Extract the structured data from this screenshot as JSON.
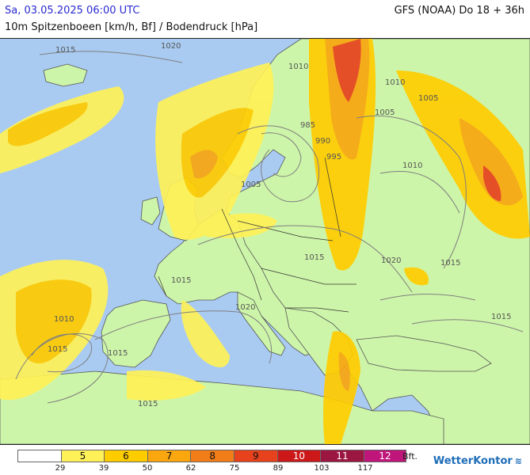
{
  "header": {
    "datetime": "Sa, 03.05.2025 06:00 UTC",
    "title": "10m Spitzenboeen [km/h, Bf] / Bodendruck [hPa]",
    "model": "GFS (NOAA) Do 18 + 36h"
  },
  "map": {
    "pressure_labels": [
      "1015",
      "1020",
      "1010",
      "985",
      "990",
      "995",
      "1005",
      "1010",
      "1005",
      "1005",
      "1015",
      "1020",
      "1015",
      "1015",
      "1010",
      "1020",
      "1015",
      "1015",
      "1015",
      "1010",
      "1015"
    ],
    "colors": {
      "sea": "#a9cbf2",
      "land": "#cdf5a9",
      "border": "#333333"
    }
  },
  "legend": {
    "bft_unit": "Bft.",
    "scale": [
      {
        "bft": "",
        "kmh": "29",
        "color": "#ffffff"
      },
      {
        "bft": "5",
        "kmh": "39",
        "color": "#fff157"
      },
      {
        "bft": "6",
        "kmh": "50",
        "color": "#ffcc00"
      },
      {
        "bft": "7",
        "kmh": "62",
        "color": "#f9a60f"
      },
      {
        "bft": "8",
        "kmh": "75",
        "color": "#f07d17"
      },
      {
        "bft": "9",
        "kmh": "89",
        "color": "#e8421c"
      },
      {
        "bft": "10",
        "kmh": "103",
        "color": "#cc1818"
      },
      {
        "bft": "11",
        "kmh": "117",
        "color": "#9c1642"
      },
      {
        "bft": "12",
        "kmh": "",
        "color": "#c0157a"
      }
    ]
  },
  "brand": "WetterKontor"
}
